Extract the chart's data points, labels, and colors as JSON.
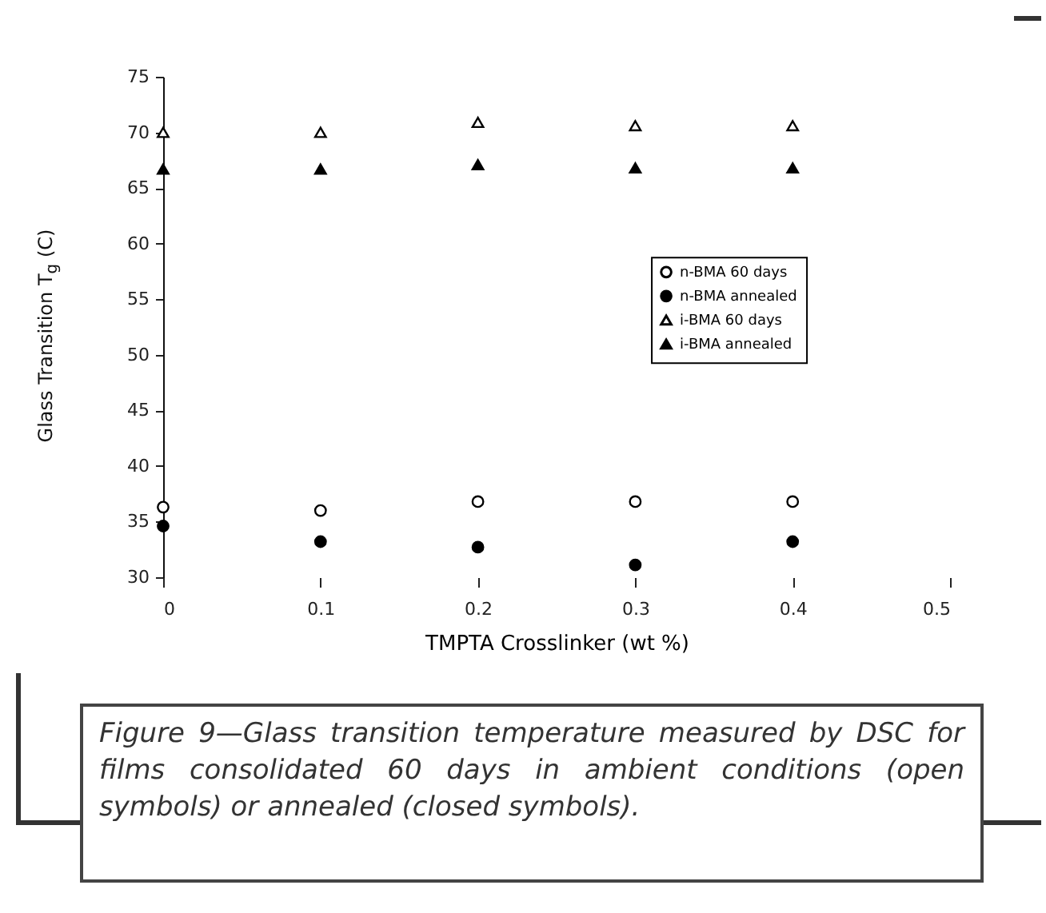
{
  "chart_data": {
    "type": "scatter",
    "xlabel": "TMPTA Crosslinker (wt %)",
    "ylabel": "Glass Transition T$_{g}$ (C)",
    "x": [
      0,
      0.1,
      0.2,
      0.3,
      0.4
    ],
    "xlim": [
      0,
      0.5
    ],
    "xticks": [
      0,
      0.1,
      0.2,
      0.3,
      0.4,
      0.5
    ],
    "ylim": [
      30,
      75
    ],
    "yticks": [
      30,
      35,
      40,
      45,
      50,
      55,
      60,
      65,
      70,
      75
    ],
    "grid": false,
    "legend": "right",
    "series": [
      {
        "name": "n-BMA 60 days",
        "color": "#ffffff",
        "marker": "circle",
        "values": [
          36.3,
          36,
          36.8,
          36.8,
          36.8
        ]
      },
      {
        "name": "n-BMA annealed",
        "color": "#000000",
        "marker": "circle",
        "values": [
          34.6,
          33.2,
          32.7,
          31.1,
          33.2
        ]
      },
      {
        "name": "i-BMA 60 days",
        "color": "#ffffff",
        "marker": "triangle",
        "values": [
          70,
          70,
          70.9,
          70.6,
          70.6
        ]
      },
      {
        "name": "i-BMA annealed",
        "color": "#000000",
        "marker": "triangle",
        "values": [
          66.7,
          66.7,
          67.1,
          66.8,
          66.8
        ]
      }
    ],
    "annotations": [
      "Figure 9—Glass transition temperature measured by DSC for films consolidated 60 days in ambient conditions (open symbols) or annealed (closed symbols)."
    ]
  }
}
